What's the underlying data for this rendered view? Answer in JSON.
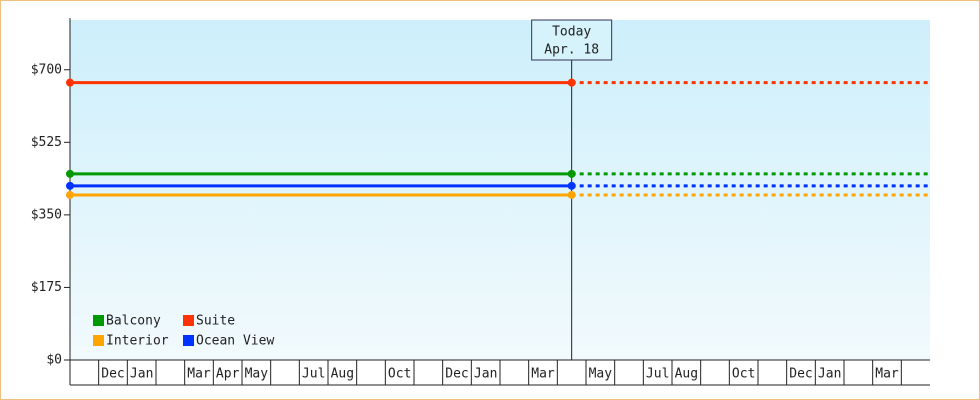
{
  "chart_data": {
    "type": "line",
    "categories": [
      null,
      "Dec",
      "Jan",
      null,
      "Mar",
      "Apr",
      "May",
      null,
      "Jul",
      "Aug",
      null,
      "Oct",
      null,
      "Dec",
      "Jan",
      null,
      "Mar",
      null,
      "May",
      null,
      "Jul",
      "Aug",
      null,
      "Oct",
      null,
      "Dec",
      "Jan",
      null,
      "Mar",
      null
    ],
    "series": [
      {
        "name": "Balcony",
        "color": "#009900",
        "value": 449
      },
      {
        "name": "Suite",
        "color": "#ff3300",
        "value": 669
      },
      {
        "name": "Interior",
        "color": "#ffa500",
        "value": 398
      },
      {
        "name": "Ocean View",
        "color": "#0033ff",
        "value": 420
      }
    ],
    "ylim": [
      0,
      820
    ],
    "yticks": [
      {
        "value": 0,
        "label": "$0"
      },
      {
        "value": 175,
        "label": "$175"
      },
      {
        "value": 350,
        "label": "$350"
      },
      {
        "value": 525,
        "label": "$525"
      },
      {
        "value": 700,
        "label": "$700"
      }
    ],
    "annotation": {
      "title": "Today",
      "date": "Apr. 18"
    },
    "legend": "bottom-left"
  }
}
